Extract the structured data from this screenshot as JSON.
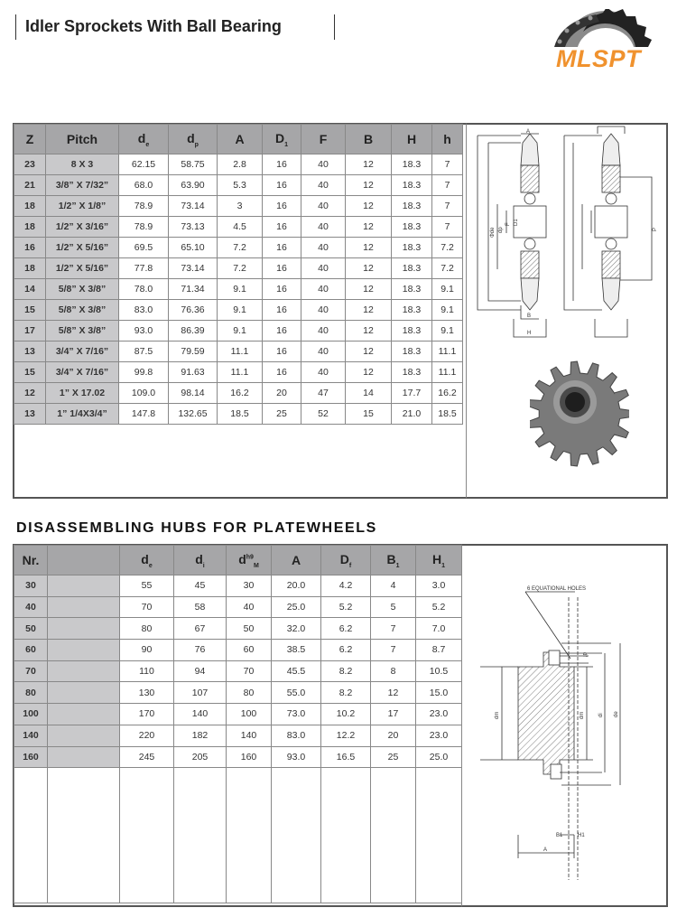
{
  "header": {
    "title": "Idler Sprockets With Ball Bearing",
    "logo_text": "MLSPT",
    "logo_color": "#f0922e"
  },
  "table1": {
    "headers": [
      {
        "main": "Z",
        "sub": ""
      },
      {
        "main": "Pitch",
        "sub": ""
      },
      {
        "main": "d",
        "sub": "e"
      },
      {
        "main": "d",
        "sub": "p"
      },
      {
        "main": "A",
        "sub": ""
      },
      {
        "main": "D",
        "sub": "1"
      },
      {
        "main": "F",
        "sub": ""
      },
      {
        "main": "B",
        "sub": ""
      },
      {
        "main": "H",
        "sub": ""
      },
      {
        "main": "h",
        "sub": ""
      }
    ],
    "rows": [
      [
        "23",
        "8 X 3",
        "62.15",
        "58.75",
        "2.8",
        "16",
        "40",
        "12",
        "18.3",
        "7"
      ],
      [
        "21",
        "3/8” X 7/32”",
        "68.0",
        "63.90",
        "5.3",
        "16",
        "40",
        "12",
        "18.3",
        "7"
      ],
      [
        "18",
        "1/2” X 1/8”",
        "78.9",
        "73.14",
        "3",
        "16",
        "40",
        "12",
        "18.3",
        "7"
      ],
      [
        "18",
        "1/2” X 3/16”",
        "78.9",
        "73.13",
        "4.5",
        "16",
        "40",
        "12",
        "18.3",
        "7"
      ],
      [
        "16",
        "1/2” X 5/16”",
        "69.5",
        "65.10",
        "7.2",
        "16",
        "40",
        "12",
        "18.3",
        "7.2"
      ],
      [
        "18",
        "1/2” X 5/16”",
        "77.8",
        "73.14",
        "7.2",
        "16",
        "40",
        "12",
        "18.3",
        "7.2"
      ],
      [
        "14",
        "5/8” X 3/8”",
        "78.0",
        "71.34",
        "9.1",
        "16",
        "40",
        "12",
        "18.3",
        "9.1"
      ],
      [
        "15",
        "5/8” X 3/8”",
        "83.0",
        "76.36",
        "9.1",
        "16",
        "40",
        "12",
        "18.3",
        "9.1"
      ],
      [
        "17",
        "5/8” X 3/8”",
        "93.0",
        "86.39",
        "9.1",
        "16",
        "40",
        "12",
        "18.3",
        "9.1"
      ],
      [
        "13",
        "3/4” X 7/16”",
        "87.5",
        "79.59",
        "11.1",
        "16",
        "40",
        "12",
        "18.3",
        "11.1"
      ],
      [
        "15",
        "3/4” X 7/16”",
        "99.8",
        "91.63",
        "11.1",
        "16",
        "40",
        "12",
        "18.3",
        "11.1"
      ],
      [
        "12",
        "1” X 17.02",
        "109.0",
        "98.14",
        "16.2",
        "20",
        "47",
        "14",
        "17.7",
        "16.2"
      ],
      [
        "13",
        "1” 1/4X3/4”",
        "147.8",
        "132.65",
        "18.5",
        "25",
        "52",
        "15",
        "21.0",
        "18.5"
      ]
    ],
    "diagram_labels": {
      "A": "A",
      "h": "h",
      "de": "Φde",
      "dp": "dp",
      "F": "F",
      "D1": "D1",
      "B": "B",
      "H": "H",
      "P": "P"
    }
  },
  "section2": {
    "title": "DISASSEMBLING HUBS FOR PLATEWHEELS"
  },
  "table2": {
    "headers": [
      {
        "main": "Nr.",
        "sub": "",
        "sup": ""
      },
      {
        "main": "",
        "sub": "",
        "sup": ""
      },
      {
        "main": "d",
        "sub": "e",
        "sup": ""
      },
      {
        "main": "d",
        "sub": "i",
        "sup": ""
      },
      {
        "main": "d",
        "sub": "M",
        "sup": "h9"
      },
      {
        "main": "A",
        "sub": "",
        "sup": ""
      },
      {
        "main": "D",
        "sub": "f",
        "sup": ""
      },
      {
        "main": "B",
        "sub": "1",
        "sup": ""
      },
      {
        "main": "H",
        "sub": "1",
        "sup": ""
      }
    ],
    "rows": [
      [
        "30",
        "",
        "55",
        "45",
        "30",
        "20.0",
        "4.2",
        "4",
        "3.0"
      ],
      [
        "40",
        "",
        "70",
        "58",
        "40",
        "25.0",
        "5.2",
        "5",
        "5.2"
      ],
      [
        "50",
        "",
        "80",
        "67",
        "50",
        "32.0",
        "6.2",
        "7",
        "7.0"
      ],
      [
        "60",
        "",
        "90",
        "76",
        "60",
        "38.5",
        "6.2",
        "7",
        "8.7"
      ],
      [
        "70",
        "",
        "110",
        "94",
        "70",
        "45.5",
        "8.2",
        "8",
        "10.5"
      ],
      [
        "80",
        "",
        "130",
        "107",
        "80",
        "55.0",
        "8.2",
        "12",
        "15.0"
      ],
      [
        "100",
        "",
        "170",
        "140",
        "100",
        "73.0",
        "10.2",
        "17",
        "23.0"
      ],
      [
        "140",
        "",
        "220",
        "182",
        "140",
        "83.0",
        "12.2",
        "20",
        "23.0"
      ],
      [
        "160",
        "",
        "245",
        "205",
        "160",
        "93.0",
        "16.5",
        "25",
        "25.0"
      ]
    ],
    "diagram_labels": {
      "holes": "6 EQUATIONAL HOLES",
      "df": "df",
      "dm": "dm",
      "di": "di",
      "de": "de",
      "B1": "B1",
      "H1": "H1",
      "A": "A"
    }
  }
}
